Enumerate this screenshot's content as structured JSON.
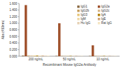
{
  "chart_data": {
    "type": "bar",
    "x_label": "Recombinant Mouse IgG2a Antibody",
    "y_label": "Abs (450nm)",
    "categories": [
      "200 ng/mL",
      "50 ng/mL",
      "10 ng/mL"
    ],
    "ylim": [
      0,
      1.6
    ],
    "yticks": [
      {
        "value": 0,
        "label": "0.000"
      },
      {
        "value": 0.2,
        "label": "0.200"
      },
      {
        "value": 0.4,
        "label": "0.400"
      },
      {
        "value": 0.6,
        "label": "0.600"
      },
      {
        "value": 0.8,
        "label": "0.800"
      },
      {
        "value": 1.0,
        "label": "1.000"
      },
      {
        "value": 1.2,
        "label": "1.200"
      },
      {
        "value": 1.4,
        "label": "1.400"
      },
      {
        "value": 1.6,
        "label": "1.600"
      }
    ],
    "legend": "top-right",
    "series": [
      {
        "name": "IgG1",
        "color": "#8c6d46",
        "values": [
          0.02,
          0.01,
          0.01
        ]
      },
      {
        "name": "IgG2a",
        "color": "#a0522d",
        "values": [
          1.55,
          1.0,
          0.33
        ]
      },
      {
        "name": "IgG2b",
        "color": "#c8a060",
        "values": [
          0.02,
          0.01,
          0.01
        ]
      },
      {
        "name": "IgG2c",
        "color": "#d9b98a",
        "values": [
          0.02,
          0.01,
          0.01
        ]
      },
      {
        "name": "IgG3",
        "color": "#e8c77a",
        "values": [
          0.02,
          0.01,
          0.01
        ]
      },
      {
        "name": "IgA",
        "color": "#b8860b",
        "values": [
          0.02,
          0.01,
          0.01
        ]
      },
      {
        "name": "IgM",
        "color": "#f0d9a8",
        "values": [
          0.02,
          0.01,
          0.01
        ]
      },
      {
        "name": "IgE",
        "color": "#d2a679",
        "values": [
          0.02,
          0.01,
          0.01
        ]
      },
      {
        "name": "Hu IgG",
        "color": "#e6d2b5",
        "values": [
          0.02,
          0.01,
          0.01
        ]
      },
      {
        "name": "Rat IgG",
        "color": "#f5e6c4",
        "values": [
          0.02,
          0.01,
          0.01
        ]
      }
    ]
  }
}
